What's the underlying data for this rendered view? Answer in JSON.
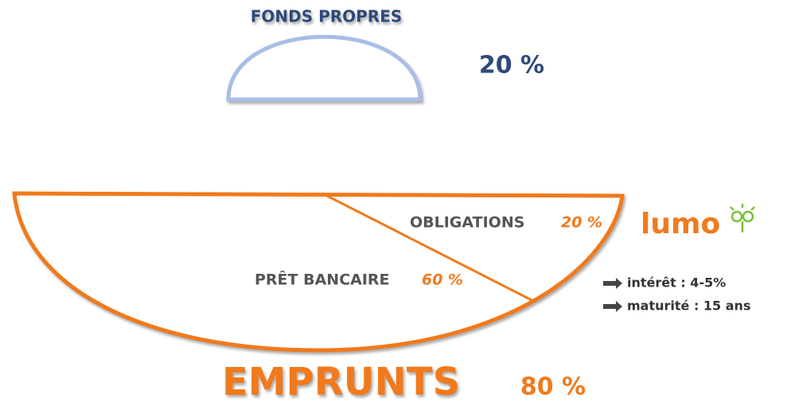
{
  "equity": {
    "title": "FONDS PROPRES",
    "share": "20 %"
  },
  "loans": {
    "title": "EMPRUNTS",
    "share": "80 %",
    "parts": [
      {
        "label": "OBLIGATIONS",
        "share": "20 %"
      },
      {
        "label": "PRÊT BANCAIRE",
        "share": "60 %"
      }
    ]
  },
  "logo": "lumo",
  "notes": [
    "intérêt : 4-5%",
    "maturité : 15 ans"
  ]
}
